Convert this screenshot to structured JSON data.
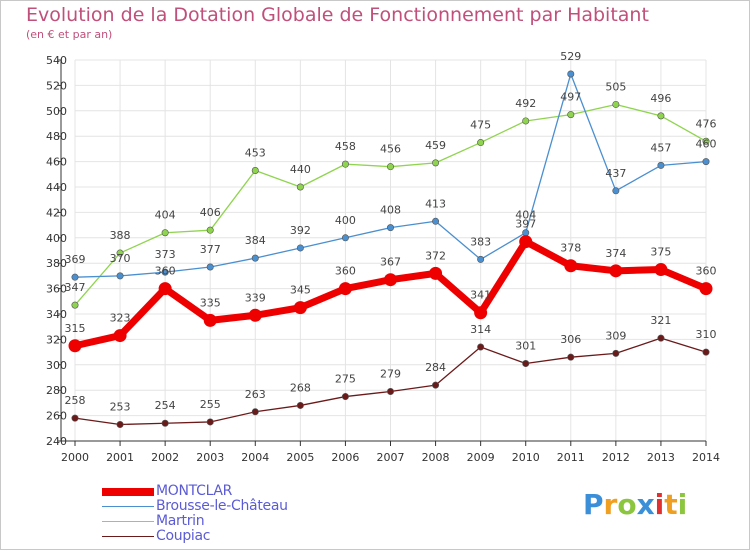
{
  "chart_data": {
    "type": "line",
    "title": "Evolution de la Dotation Globale de Fonctionnement par Habitant",
    "subtitle": "(en € et par an)",
    "x": [
      "2000",
      "2001",
      "2002",
      "2003",
      "2004",
      "2005",
      "2006",
      "2007",
      "2008",
      "2009",
      "2010",
      "2011",
      "2012",
      "2013",
      "2014"
    ],
    "ylim": [
      240,
      540
    ],
    "yticks": [
      240,
      260,
      280,
      300,
      320,
      340,
      360,
      380,
      400,
      420,
      440,
      460,
      480,
      500,
      520,
      540
    ],
    "grid": true,
    "legend_position": "bottom-left",
    "series": [
      {
        "name": "MONTCLAR",
        "color": "#ee0000",
        "values": [
          315,
          323,
          360,
          335,
          339,
          345,
          360,
          367,
          372,
          341,
          397,
          378,
          374,
          375,
          360
        ]
      },
      {
        "name": "Brousse-le-Château",
        "color": "#4a8fd0",
        "values": [
          369,
          370,
          373,
          377,
          384,
          392,
          400,
          408,
          413,
          383,
          404,
          529,
          437,
          457,
          460
        ]
      },
      {
        "name": "Martrin",
        "color": "#8fd44e",
        "values": [
          347,
          388,
          404,
          406,
          453,
          440,
          458,
          456,
          459,
          475,
          492,
          497,
          505,
          496,
          476
        ]
      },
      {
        "name": "Coupiac",
        "color": "#6b1a1a",
        "values": [
          258,
          253,
          254,
          255,
          263,
          268,
          275,
          279,
          284,
          314,
          301,
          306,
          309,
          321,
          310
        ]
      }
    ]
  },
  "logo": {
    "letters": [
      "P",
      "r",
      "o",
      "x",
      "i",
      "t",
      "i"
    ],
    "colors": [
      "#3a8fd8",
      "#f0a020",
      "#8cc63f",
      "#3a8fd8",
      "#e03030",
      "#f0a020",
      "#8cc63f"
    ]
  }
}
